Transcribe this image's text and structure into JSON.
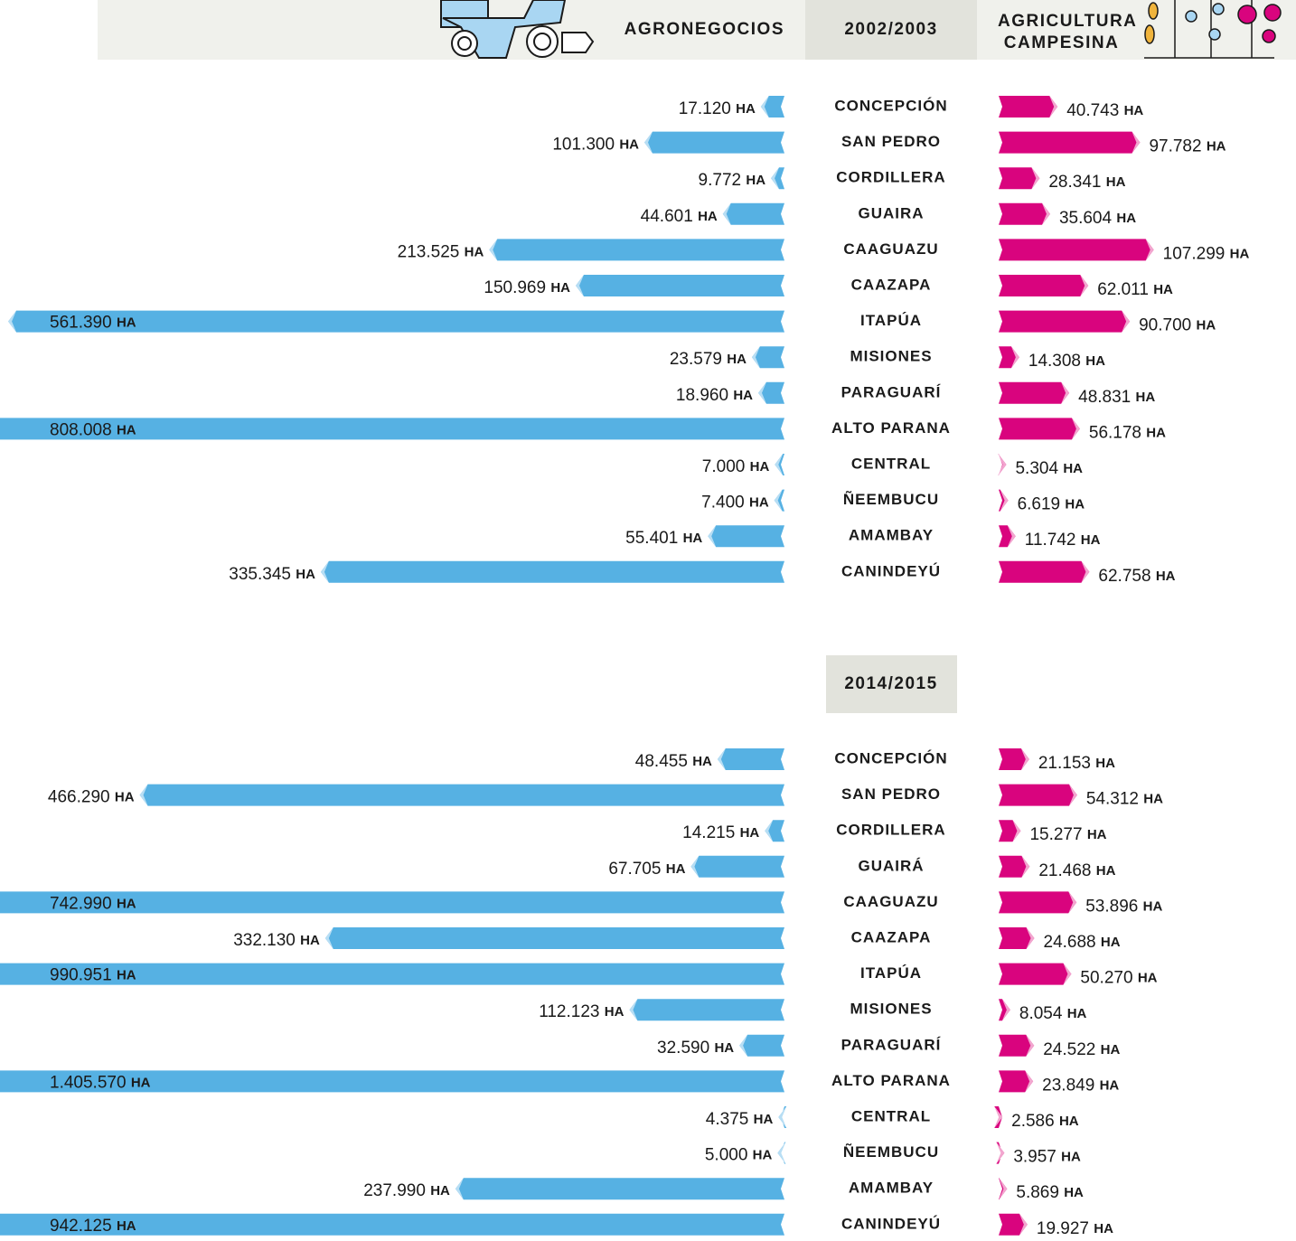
{
  "chart_data": [
    {
      "type": "butterfly-bar",
      "title": "2002/2003",
      "categories": [
        "CONCEPCIÓN",
        "SAN PEDRO",
        "CORDILLERA",
        "GUAIRA",
        "CAAGUAZU",
        "CAAZAPA",
        "ITAPÚA",
        "MISIONES",
        "PARAGUARÍ",
        "ALTO PARANA",
        "CENTRAL",
        "ÑEEMBUCU",
        "AMAMBAY",
        "CANINDEYÚ"
      ],
      "series": [
        {
          "name": "AGRONEGOCIOS",
          "color": "#56b1e3",
          "values": [
            17120,
            101300,
            9772,
            44601,
            213525,
            150969,
            561390,
            23579,
            18960,
            808008,
            7000,
            7400,
            55401,
            335345
          ],
          "value_labels": [
            "17.120 HA",
            "101.300 HA",
            "9.772 HA",
            "44.601 HA",
            "213.525 HA",
            "150.969 HA",
            "561.390 HA",
            "23.579 HA",
            "18.960 HA",
            "808.008 HA",
            "7.000 HA",
            "7.400 HA",
            "55.401 HA",
            "335.345 HA"
          ]
        },
        {
          "name": "AGRICULTURA CAMPESINA",
          "color": "#d9047e",
          "values": [
            40743,
            97782,
            28341,
            35604,
            107299,
            62011,
            90700,
            14308,
            48831,
            56178,
            5304,
            6619,
            11742,
            62758
          ],
          "value_labels": [
            "40.743 HA",
            "97.782 HA",
            "28.341 HA",
            "35.604 HA",
            "107.299 HA",
            "62.011 HA",
            "90.700 HA",
            "14.308 HA",
            "48.831 HA",
            "56.178 HA",
            "5.304 HA",
            "6.619 HA",
            "11.742 HA",
            "62.758 HA"
          ]
        }
      ]
    },
    {
      "type": "butterfly-bar",
      "title": "2014/2015",
      "categories": [
        "CONCEPCIÓN",
        "SAN PEDRO",
        "CORDILLERA",
        "GUAIRÁ",
        "CAAGUAZU",
        "CAAZAPA",
        "ITAPÚA",
        "MISIONES",
        "PARAGUARÍ",
        "ALTO PARANA",
        "CENTRAL",
        "ÑEEMBUCU",
        "AMAMBAY",
        "CANINDEYÚ"
      ],
      "series": [
        {
          "color": "#56b1e3",
          "values": [
            48455,
            466290,
            14215,
            67705,
            742990,
            332130,
            990951,
            112123,
            32590,
            1405570,
            4375,
            5000,
            237990,
            942125
          ],
          "value_labels": [
            "48.455 HA",
            "466.290 HA",
            "14.215 HA",
            "67.705 HA",
            "742.990 HA",
            "332.130 HA",
            "990.951 HA",
            "112.123 HA",
            "32.590 HA",
            "1.405.570 HA",
            "4.375 HA",
            "5.000 HA",
            "237.990 HA",
            "942.125 HA"
          ]
        },
        {
          "color": "#d9047e",
          "values": [
            21153,
            54312,
            15277,
            21468,
            53896,
            24688,
            50270,
            8054,
            24522,
            23849,
            2586,
            3957,
            5869,
            19927
          ],
          "value_labels": [
            "21.153 HA",
            "54.312 HA",
            "15.277 HA",
            "21.468 HA",
            "53.896 HA",
            "24.688 HA",
            "50.270 HA",
            "8.054 HA",
            "24.522 HA",
            "23.849 HA",
            "2.586 HA",
            "3.957 HA",
            "5.869 HA",
            "19.927 HA"
          ]
        }
      ]
    }
  ]
}
